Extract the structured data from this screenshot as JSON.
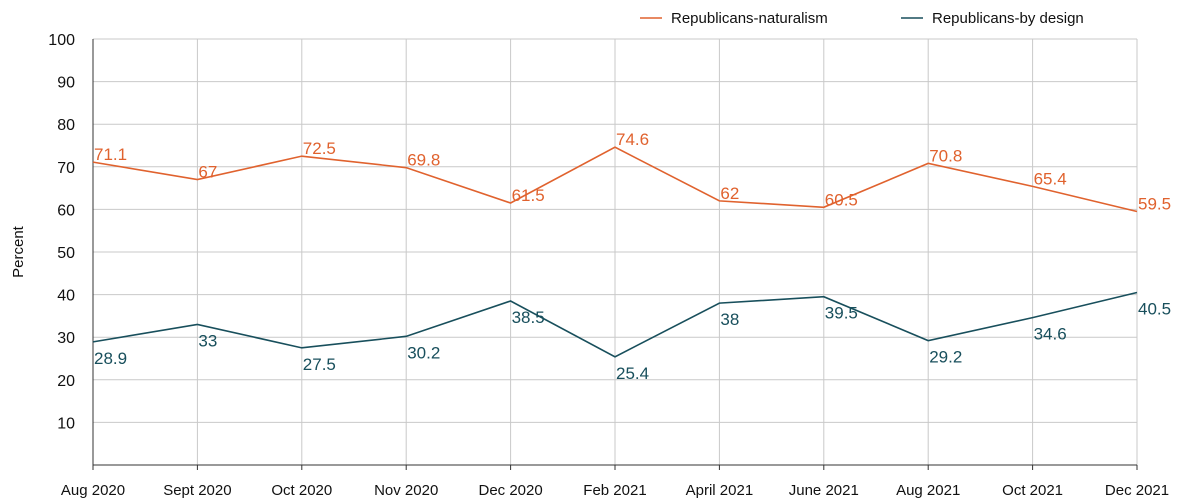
{
  "chart_data": {
    "type": "line",
    "title": "",
    "xlabel": "",
    "ylabel": "Percent",
    "ylim": [
      0,
      100
    ],
    "yticks": [
      10,
      20,
      30,
      40,
      50,
      60,
      70,
      80,
      90,
      100
    ],
    "grid": true,
    "legend_position": "top-right",
    "categories": [
      "Aug 2020",
      "Sept 2020",
      "Oct 2020",
      "Nov 2020",
      "Dec 2020",
      "Feb 2021",
      "April 2021",
      "June 2021",
      "Aug 2021",
      "Oct 2021",
      "Dec 2021"
    ],
    "series": [
      {
        "name": "Republicans-naturalism",
        "color": "#e0622e",
        "values": [
          71.1,
          67,
          72.5,
          69.8,
          61.5,
          74.6,
          62,
          60.5,
          70.8,
          65.4,
          59.5
        ],
        "labels": [
          "71.1",
          "67",
          "72.5",
          "69.8",
          "61.5",
          "74.6",
          "62",
          "60.5",
          "70.8",
          "65.4",
          "59.5"
        ]
      },
      {
        "name": "Republicans-by design",
        "color": "#184f5c",
        "values": [
          28.9,
          33,
          27.5,
          30.2,
          38.5,
          25.4,
          38,
          39.5,
          29.2,
          34.6,
          40.5
        ],
        "labels": [
          "28.9",
          "33",
          "27.5",
          "30.2",
          "38.5",
          "25.4",
          "38",
          "39.5",
          "29.2",
          "34.6",
          "40.5"
        ]
      }
    ]
  }
}
